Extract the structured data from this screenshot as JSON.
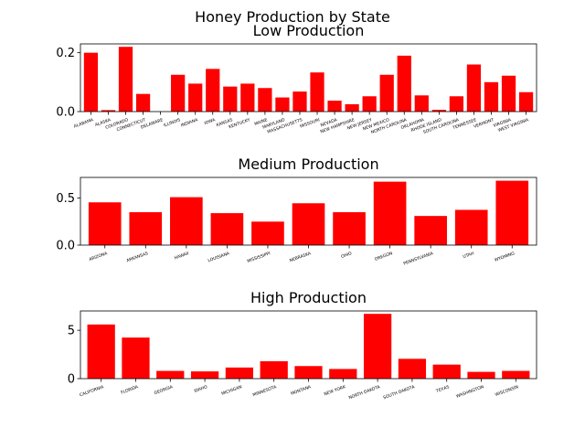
{
  "figure": {
    "suptitle": "Honey Production by State",
    "bar_color": "#ff0000"
  },
  "chart_data": [
    {
      "type": "bar",
      "title": "Low Production",
      "xlabel": "",
      "ylabel": "",
      "ylim": [
        0,
        0.23
      ],
      "yticks": [
        0.0,
        0.2
      ],
      "categories": [
        "ALABAMA",
        "ALASKA",
        "COLORADO",
        "CONNECTICUT",
        "DELAWARE",
        "ILLINOIS",
        "INDIANA",
        "IOWA",
        "KANSAS",
        "KENTUCKY",
        "MAINE",
        "MARYLAND",
        "MASSACHUSETTS",
        "MISSOURI",
        "NEVADA",
        "NEW HAMPSHIRE",
        "NEW JERSEY",
        "NEW MEXICO",
        "NORTH CAROLINA",
        "OKLAHOMA",
        "RHODE ISLAND",
        "SOUTH CAROLINA",
        "TENNESSEE",
        "VERMONT",
        "VIRGINIA",
        "WEST VIRGINIA"
      ],
      "values": [
        0.2,
        0.005,
        0.22,
        0.06,
        0.0,
        0.125,
        0.095,
        0.145,
        0.085,
        0.095,
        0.08,
        0.048,
        0.068,
        0.133,
        0.037,
        0.025,
        0.052,
        0.125,
        0.19,
        0.055,
        0.006,
        0.052,
        0.16,
        0.1,
        0.122,
        0.066
      ],
      "grid": false,
      "legend": "none"
    },
    {
      "type": "bar",
      "title": "Medium Production",
      "xlabel": "",
      "ylabel": "",
      "ylim": [
        0,
        0.72
      ],
      "yticks": [
        0.0,
        0.5
      ],
      "categories": [
        "ARIZONA",
        "ARKANSAS",
        "HAWAII",
        "LOUISIANA",
        "MISSISSIPPI",
        "NEBRASKA",
        "OHIO",
        "OREGON",
        "PENNSYLVANIA",
        "UTAH",
        "WYOMING"
      ],
      "values": [
        0.455,
        0.35,
        0.51,
        0.34,
        0.25,
        0.445,
        0.35,
        0.675,
        0.31,
        0.375,
        0.685
      ],
      "grid": false,
      "legend": "none"
    },
    {
      "type": "bar",
      "title": "High Production",
      "xlabel": "",
      "ylabel": "",
      "ylim": [
        0,
        7.0
      ],
      "yticks": [
        0,
        5
      ],
      "categories": [
        "CALIFORNIA",
        "FLORIDA",
        "GEORGIA",
        "IDAHO",
        "MICHIGAN",
        "MINNESOTA",
        "MONTANA",
        "NEW YORK",
        "NORTH DAKOTA",
        "SOUTH DAKOTA",
        "TEXAS",
        "WASHINGTON",
        "WISCONSIN"
      ],
      "values": [
        5.6,
        4.25,
        0.8,
        0.75,
        1.15,
        1.8,
        1.3,
        1.0,
        6.7,
        2.05,
        1.45,
        0.7,
        0.8
      ],
      "grid": false,
      "legend": "none"
    }
  ]
}
